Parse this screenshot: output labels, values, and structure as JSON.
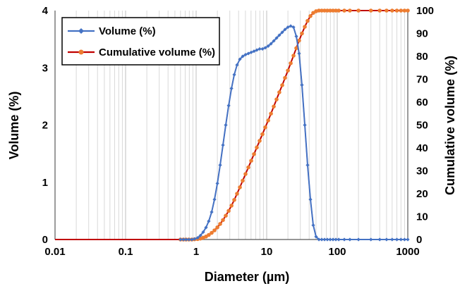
{
  "chart_data": {
    "type": "line",
    "title": "",
    "xlabel": "Diameter (µm)",
    "ylabel": "Volume (%)",
    "y2label": "Cumulative volume (%)",
    "x_scale": "log",
    "xlim": [
      0.01,
      1000
    ],
    "ylim": [
      0,
      4
    ],
    "y2lim": [
      0,
      100
    ],
    "grid": "vertical log gridlines",
    "legend_position": "top-left",
    "x_ticks": [
      "0.01",
      "0.1",
      "1",
      "10",
      "100",
      "1000"
    ],
    "y_ticks": [
      "0",
      "1",
      "2",
      "3",
      "4"
    ],
    "y2_ticks": [
      "0",
      "10",
      "20",
      "30",
      "40",
      "50",
      "60",
      "70",
      "80",
      "90",
      "100"
    ],
    "series": [
      {
        "name": "Volume (%)",
        "axis": "left",
        "color": "#4472C4",
        "marker": "diamond",
        "x": [
          0.6,
          0.66,
          0.72,
          0.79,
          0.87,
          0.95,
          1.05,
          1.15,
          1.26,
          1.38,
          1.51,
          1.66,
          1.82,
          2.0,
          2.19,
          2.4,
          2.63,
          2.89,
          3.17,
          3.47,
          3.8,
          4.17,
          4.57,
          5.01,
          5.5,
          6.03,
          6.61,
          7.24,
          7.94,
          8.71,
          9.55,
          10.5,
          11.5,
          12.6,
          13.8,
          15.1,
          16.6,
          18.2,
          20.0,
          21.9,
          24.0,
          26.3,
          28.8,
          31.6,
          34.7,
          38.0,
          41.7,
          45.7,
          50.1,
          55.0,
          60.3,
          66.1,
          72.4,
          79.4,
          87.1,
          95.5,
          105,
          126,
          151,
          200,
          300,
          400,
          500,
          600,
          700,
          800,
          900,
          1000
        ],
        "values": [
          0,
          0,
          0,
          0,
          0,
          0.01,
          0.03,
          0.07,
          0.13,
          0.21,
          0.32,
          0.48,
          0.7,
          0.98,
          1.3,
          1.65,
          2.0,
          2.34,
          2.64,
          2.88,
          3.05,
          3.15,
          3.2,
          3.23,
          3.25,
          3.27,
          3.29,
          3.31,
          3.33,
          3.33,
          3.35,
          3.38,
          3.42,
          3.47,
          3.52,
          3.57,
          3.62,
          3.67,
          3.71,
          3.73,
          3.71,
          3.55,
          3.25,
          2.7,
          2.0,
          1.3,
          0.7,
          0.25,
          0.05,
          0,
          0,
          0,
          0,
          0,
          0,
          0,
          0,
          0,
          0,
          0,
          0,
          0,
          0,
          0,
          0,
          0,
          0,
          0
        ]
      },
      {
        "name": "Cumulative volume (%)",
        "axis": "right",
        "color": "#ED7D31",
        "line_color": "#C00000",
        "marker": "circle",
        "x": [
          0.01,
          0.6,
          0.66,
          0.72,
          0.79,
          0.87,
          0.95,
          1.05,
          1.15,
          1.26,
          1.38,
          1.51,
          1.66,
          1.82,
          2.0,
          2.19,
          2.4,
          2.63,
          2.89,
          3.17,
          3.47,
          3.8,
          4.17,
          4.57,
          5.01,
          5.5,
          6.03,
          6.61,
          7.24,
          7.94,
          8.71,
          9.55,
          10.5,
          11.5,
          12.6,
          13.8,
          15.1,
          16.6,
          18.2,
          20.0,
          21.9,
          24.0,
          26.3,
          28.8,
          31.6,
          34.7,
          38.0,
          41.7,
          45.7,
          50.1,
          55.0,
          60.3,
          66.1,
          72.4,
          79.4,
          87.1,
          95.5,
          105,
          126,
          151,
          200,
          300,
          400,
          500,
          600,
          700,
          800,
          900,
          1000
        ],
        "values": [
          0,
          0,
          0,
          0,
          0,
          0,
          0.1,
          0.2,
          0.4,
          0.8,
          1.3,
          2.0,
          2.9,
          4.0,
          5.3,
          6.8,
          8.5,
          10.4,
          12.5,
          14.8,
          17.3,
          20.0,
          22.8,
          25.7,
          28.6,
          31.5,
          34.4,
          37.3,
          40.2,
          43.1,
          46.0,
          49.0,
          52.0,
          55.0,
          58.1,
          61.2,
          64.3,
          67.4,
          70.6,
          73.8,
          77.0,
          80.3,
          83.6,
          86.9,
          90.0,
          92.9,
          95.5,
          97.6,
          99.0,
          99.7,
          100,
          100,
          100,
          100,
          100,
          100,
          100,
          100,
          100,
          100,
          100,
          100,
          100,
          100,
          100,
          100,
          100,
          100,
          100
        ]
      }
    ]
  }
}
